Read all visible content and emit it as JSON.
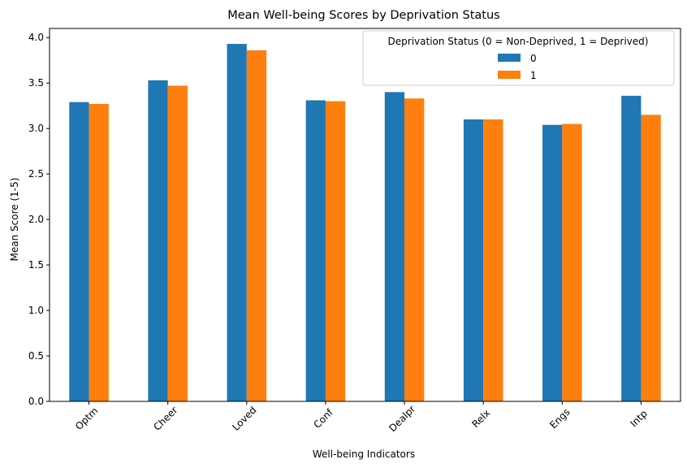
{
  "chart_data": {
    "type": "bar",
    "title": "Mean Well-being Scores by Deprivation Status",
    "xlabel": "Well-being Indicators",
    "ylabel": "Mean Score (1-5)",
    "categories": [
      "Optm",
      "Cheer",
      "Loved",
      "Conf",
      "Dealpr",
      "Relx",
      "Engs",
      "Intp"
    ],
    "series": [
      {
        "name": "0",
        "color": "#1f77b4",
        "values": [
          3.29,
          3.53,
          3.93,
          3.31,
          3.4,
          3.1,
          3.04,
          3.36
        ]
      },
      {
        "name": "1",
        "color": "#ff7f0e",
        "values": [
          3.27,
          3.47,
          3.86,
          3.3,
          3.33,
          3.1,
          3.05,
          3.15
        ]
      }
    ],
    "ylim": [
      0,
      4.1
    ],
    "yticks": [
      "0.0",
      "0.5",
      "1.0",
      "1.5",
      "2.0",
      "2.5",
      "3.0",
      "3.5",
      "4.0"
    ],
    "legend": {
      "title": "Deprivation Status (0 = Non-Deprived, 1 = Deprived)",
      "placement": "top-right"
    },
    "grid": false
  }
}
